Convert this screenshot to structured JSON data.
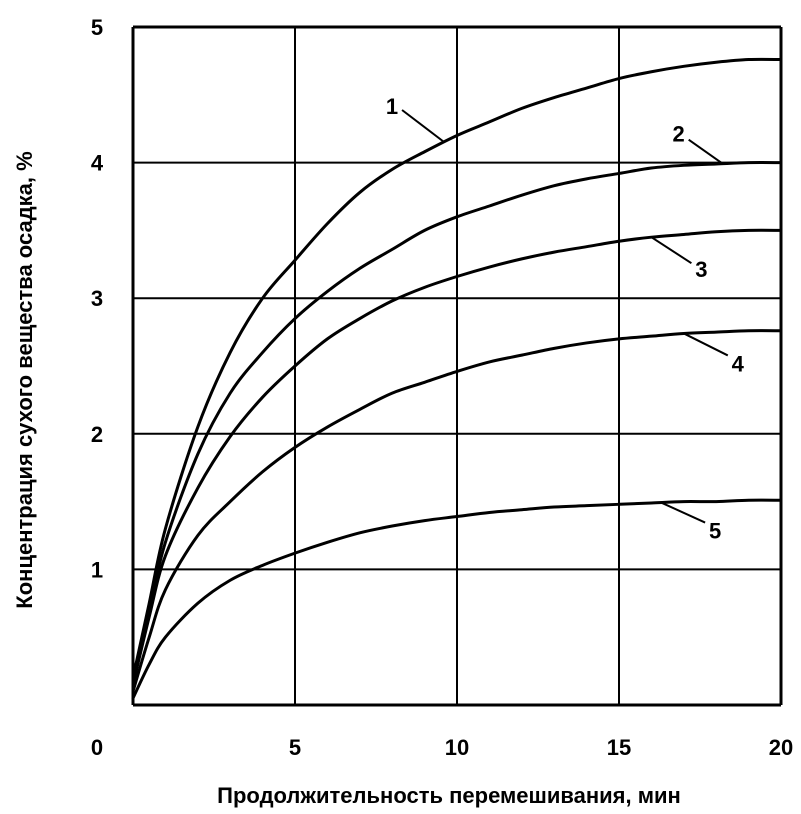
{
  "chart_data": {
    "type": "line",
    "title": "",
    "xlabel": "Продолжительность перемешивания, мин",
    "ylabel": "Концентрация сухого вещества осадка, %",
    "xlim": [
      0,
      20
    ],
    "ylim": [
      0,
      5
    ],
    "xticks": [
      0,
      5,
      10,
      15,
      20
    ],
    "yticks": [
      1,
      2,
      3,
      4,
      5
    ],
    "x_tick_labels": [
      "0",
      "5",
      "10",
      "15",
      "20"
    ],
    "y_tick_labels": [
      "1",
      "2",
      "3",
      "4",
      "5"
    ],
    "grid": true,
    "x": [
      0,
      0.5,
      1,
      2,
      3,
      4,
      5,
      6,
      7,
      8,
      9,
      10,
      11,
      12,
      13,
      14,
      15,
      16,
      17,
      18,
      19,
      20
    ],
    "series": [
      {
        "name": "1",
        "values": [
          0.2,
          0.75,
          1.3,
          2.05,
          2.6,
          3.0,
          3.28,
          3.55,
          3.78,
          3.95,
          4.08,
          4.2,
          4.3,
          4.4,
          4.48,
          4.55,
          4.62,
          4.67,
          4.71,
          4.74,
          4.76,
          4.76
        ]
      },
      {
        "name": "2",
        "values": [
          0.2,
          0.7,
          1.2,
          1.85,
          2.3,
          2.6,
          2.85,
          3.05,
          3.22,
          3.36,
          3.5,
          3.6,
          3.68,
          3.76,
          3.83,
          3.88,
          3.92,
          3.96,
          3.98,
          3.99,
          4.0,
          4.0
        ]
      },
      {
        "name": "3",
        "values": [
          0.15,
          0.65,
          1.1,
          1.6,
          1.98,
          2.27,
          2.5,
          2.7,
          2.85,
          2.98,
          3.08,
          3.16,
          3.23,
          3.29,
          3.34,
          3.38,
          3.42,
          3.45,
          3.47,
          3.49,
          3.5,
          3.5
        ]
      },
      {
        "name": "4",
        "values": [
          0.1,
          0.5,
          0.85,
          1.25,
          1.5,
          1.72,
          1.9,
          2.05,
          2.18,
          2.3,
          2.38,
          2.46,
          2.53,
          2.58,
          2.63,
          2.67,
          2.7,
          2.72,
          2.74,
          2.75,
          2.76,
          2.76
        ]
      },
      {
        "name": "5",
        "values": [
          0.05,
          0.3,
          0.5,
          0.75,
          0.92,
          1.03,
          1.12,
          1.2,
          1.27,
          1.32,
          1.36,
          1.39,
          1.42,
          1.44,
          1.46,
          1.47,
          1.48,
          1.49,
          1.5,
          1.5,
          1.51,
          1.51
        ]
      }
    ],
    "annotations": [
      {
        "text": "1",
        "series": "1",
        "at_x": 9.6
      },
      {
        "text": "2",
        "series": "2",
        "at_x": 18.2
      },
      {
        "text": "3",
        "series": "3",
        "at_x": 16.0
      },
      {
        "text": "4",
        "series": "4",
        "at_x": 17.0
      },
      {
        "text": "5",
        "series": "5",
        "at_x": 16.3
      }
    ]
  }
}
